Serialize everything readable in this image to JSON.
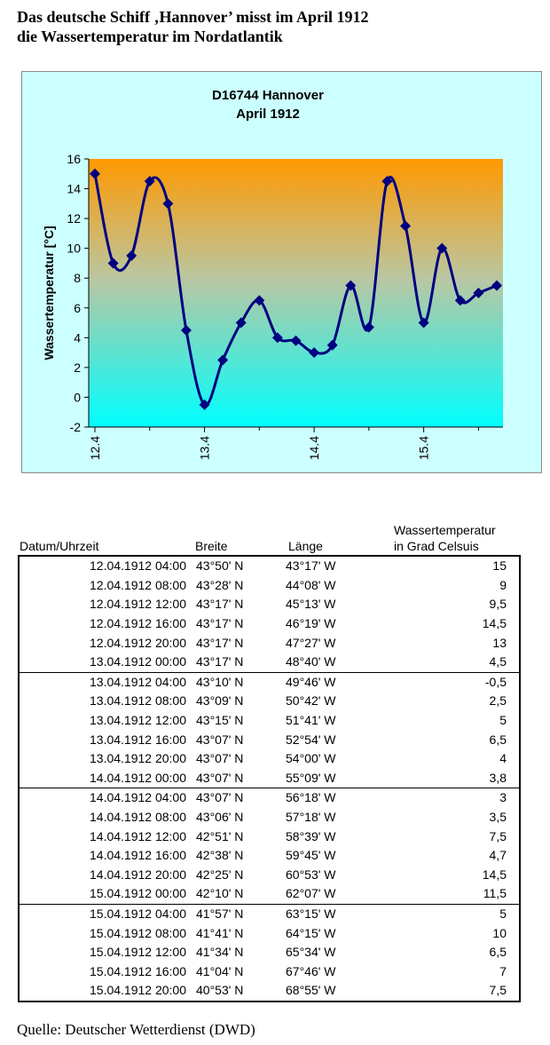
{
  "document": {
    "title_lines": [
      "Das deutsche Schiff ‚Hannover’ misst im April 1912",
      "die Wassertemperatur im Nordatlantik"
    ],
    "source": "Quelle: Deutscher Wetterdienst (DWD)"
  },
  "chart_data": {
    "type": "line",
    "title": "D16744 Hannover",
    "subtitle": "April 1912",
    "xlabel": "",
    "ylabel": "Wassertemperatur [°C]",
    "ylim": [
      -2,
      16
    ],
    "yticks": [
      -2,
      0,
      2,
      4,
      6,
      8,
      10,
      12,
      14,
      16
    ],
    "xticks": [
      "12.4",
      "13.4",
      "14.4",
      "15.4"
    ],
    "x": [
      "12.04.1912 04:00",
      "12.04.1912 08:00",
      "12.04.1912 12:00",
      "12.04.1912 16:00",
      "12.04.1912 20:00",
      "13.04.1912 00:00",
      "13.04.1912 04:00",
      "13.04.1912 08:00",
      "13.04.1912 12:00",
      "13.04.1912 16:00",
      "13.04.1912 20:00",
      "14.04.1912 00:00",
      "14.04.1912 04:00",
      "14.04.1912 08:00",
      "14.04.1912 12:00",
      "14.04.1912 16:00",
      "14.04.1912 20:00",
      "15.04.1912 00:00",
      "15.04.1912 04:00",
      "15.04.1912 08:00",
      "15.04.1912 12:00",
      "15.04.1912 16:00",
      "15.04.1912 20:00"
    ],
    "values": [
      15,
      9,
      9.5,
      14.5,
      13,
      4.5,
      -0.5,
      2.5,
      5,
      6.5,
      4,
      3.8,
      3,
      3.5,
      7.5,
      4.7,
      14.5,
      11.5,
      5,
      10,
      6.5,
      7,
      7.5
    ],
    "grid": false,
    "legend": "none",
    "colors": {
      "line": "#000080",
      "background": "#ccffff",
      "plot_gradient_top": "#ff9900",
      "plot_gradient_bottom": "#00ffff"
    }
  },
  "table": {
    "headers": {
      "datetime": "Datum/Uhrzeit",
      "lat": "Breite",
      "lon": "Länge",
      "temp_line1": "Wassertemperatur",
      "temp_line2": "in Grad Celsuis"
    },
    "rows": [
      {
        "datetime": "12.04.1912 04:00",
        "lat": "43°50' N",
        "lon": "43°17' W",
        "temp": "15"
      },
      {
        "datetime": "12.04.1912 08:00",
        "lat": "43°28' N",
        "lon": "44°08' W",
        "temp": "9"
      },
      {
        "datetime": "12.04.1912 12:00",
        "lat": "43°17' N",
        "lon": "45°13' W",
        "temp": "9,5"
      },
      {
        "datetime": "12.04.1912 16:00",
        "lat": "43°17' N",
        "lon": "46°19' W",
        "temp": "14,5"
      },
      {
        "datetime": "12.04.1912 20:00",
        "lat": "43°17' N",
        "lon": "47°27' W",
        "temp": "13"
      },
      {
        "datetime": "13.04.1912 00:00",
        "lat": "43°17' N",
        "lon": "48°40' W",
        "temp": "4,5"
      },
      {
        "datetime": "13.04.1912 04:00",
        "lat": "43°10' N",
        "lon": "49°46' W",
        "temp": "-0,5"
      },
      {
        "datetime": "13.04.1912 08:00",
        "lat": "43°09' N",
        "lon": "50°42' W",
        "temp": "2,5"
      },
      {
        "datetime": "13.04.1912 12:00",
        "lat": "43°15' N",
        "lon": "51°41' W",
        "temp": "5"
      },
      {
        "datetime": "13.04.1912 16:00",
        "lat": "43°07' N",
        "lon": "52°54' W",
        "temp": "6,5"
      },
      {
        "datetime": "13.04.1912 20:00",
        "lat": "43°07' N",
        "lon": "54°00' W",
        "temp": "4"
      },
      {
        "datetime": "14.04.1912 00:00",
        "lat": "43°07' N",
        "lon": "55°09' W",
        "temp": "3,8"
      },
      {
        "datetime": "14.04.1912 04:00",
        "lat": "43°07' N",
        "lon": "56°18' W",
        "temp": "3"
      },
      {
        "datetime": "14.04.1912 08:00",
        "lat": "43°06' N",
        "lon": "57°18' W",
        "temp": "3,5"
      },
      {
        "datetime": "14.04.1912 12:00",
        "lat": "42°51' N",
        "lon": "58°39' W",
        "temp": "7,5"
      },
      {
        "datetime": "14.04.1912 16:00",
        "lat": "42°38' N",
        "lon": "59°45' W",
        "temp": "4,7"
      },
      {
        "datetime": "14.04.1912 20:00",
        "lat": "42°25' N",
        "lon": "60°53' W",
        "temp": "14,5"
      },
      {
        "datetime": "15.04.1912 00:00",
        "lat": "42°10' N",
        "lon": "62°07' W",
        "temp": "11,5"
      },
      {
        "datetime": "15.04.1912 04:00",
        "lat": "41°57' N",
        "lon": "63°15' W",
        "temp": "5"
      },
      {
        "datetime": "15.04.1912 08:00",
        "lat": "41°41' N",
        "lon": "64°15' W",
        "temp": "10"
      },
      {
        "datetime": "15.04.1912 12:00",
        "lat": "41°34' N",
        "lon": "65°34' W",
        "temp": "6,5"
      },
      {
        "datetime": "15.04.1912 16:00",
        "lat": "41°04' N",
        "lon": "67°46' W",
        "temp": "7"
      },
      {
        "datetime": "15.04.1912 20:00",
        "lat": "40°53' N",
        "lon": "68°55' W",
        "temp": "7,5"
      }
    ]
  }
}
